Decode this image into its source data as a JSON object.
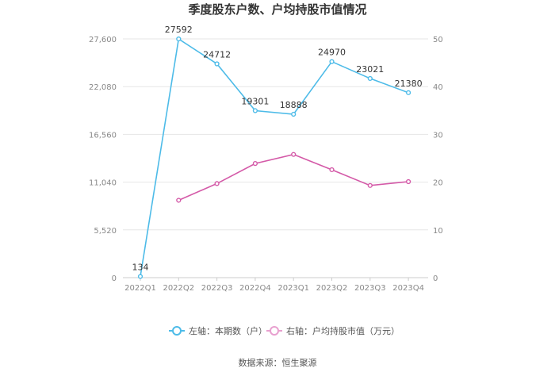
{
  "chart_data": {
    "type": "line",
    "title": "季度股东户数、户均持股市值情况",
    "categories": [
      "2022Q1",
      "2022Q2",
      "2022Q3",
      "2022Q4",
      "2023Q1",
      "2023Q2",
      "2023Q3",
      "2023Q4"
    ],
    "left_axis": {
      "ylim": [
        0,
        27600
      ],
      "ticks": [
        "0",
        "5,520",
        "11,040",
        "16,560",
        "22,080",
        "27,600"
      ]
    },
    "right_axis": {
      "ylim": [
        0,
        50
      ],
      "ticks": [
        "0",
        "10",
        "20",
        "30",
        "40",
        "50"
      ]
    },
    "series": [
      {
        "name": "左轴：本期数（户）",
        "axis": "left",
        "color": "#4dbbe8",
        "values": [
          134,
          27592,
          24712,
          19301,
          18888,
          24970,
          23021,
          21380
        ],
        "labels": [
          "134",
          "27592",
          "24712",
          "19301",
          "18888",
          "24970",
          "23021",
          "21380"
        ]
      },
      {
        "name": "右轴：户均持股市值（万元）",
        "axis": "right",
        "color": "#d45aa8",
        "values": [
          null,
          16.2,
          19.7,
          23.9,
          25.8,
          22.6,
          19.3,
          20.1
        ]
      }
    ],
    "grid": true,
    "legend": "bottom-center",
    "source": "数据来源：恒生聚源"
  }
}
